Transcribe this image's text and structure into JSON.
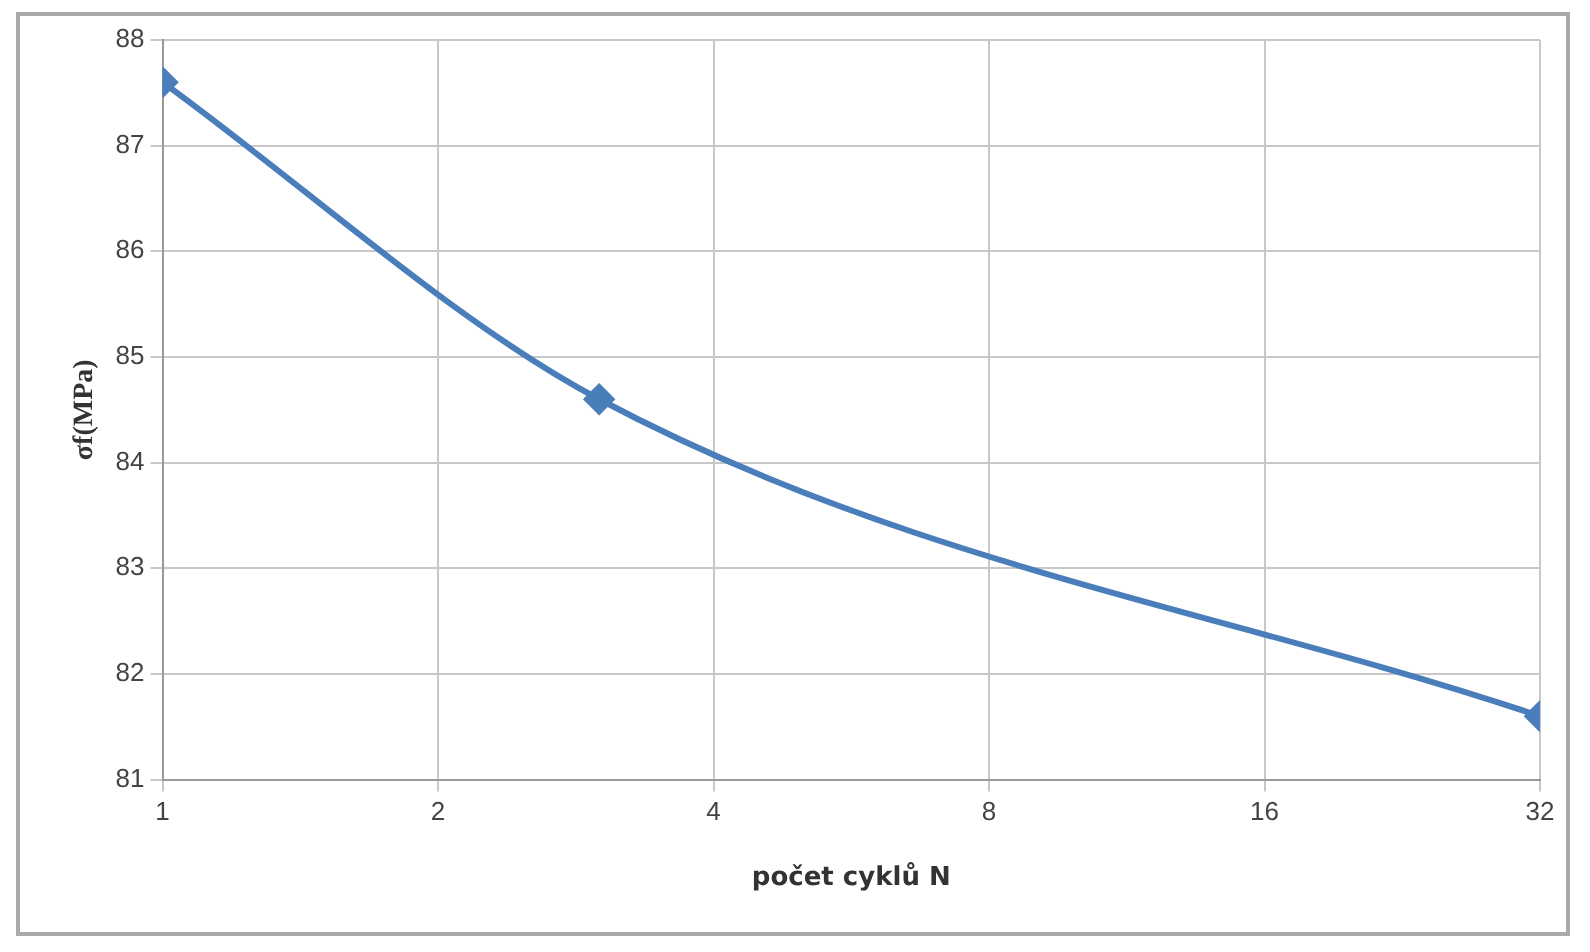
{
  "chart_data": {
    "type": "line",
    "xlabel": "počet cyklů N",
    "ylabel": "σf(MPa)",
    "x": [
      1,
      3,
      32
    ],
    "series": [
      {
        "color": "#4a7ebb",
        "values": [
          87.6,
          84.6,
          81.6
        ]
      }
    ],
    "log": "x",
    "xlim": [
      1,
      32
    ],
    "xticks": [
      1,
      2,
      4,
      8,
      16,
      32
    ],
    "ylim": [
      81,
      88
    ],
    "yticks": [
      81,
      82,
      83,
      84,
      85,
      86,
      87,
      88
    ],
    "grid": true,
    "legend": false,
    "marker": "diamond",
    "line_style": "solid"
  }
}
